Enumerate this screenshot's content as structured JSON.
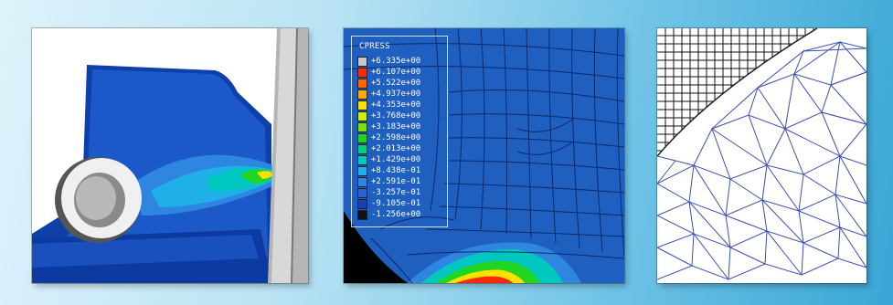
{
  "legend": {
    "title": "CPRESS",
    "entries": [
      {
        "label": "+6.335e+00",
        "color": "#c8c8c8"
      },
      {
        "label": "+6.107e+00",
        "color": "#ff2a00"
      },
      {
        "label": "+5.522e+00",
        "color": "#ff6a00"
      },
      {
        "label": "+4.937e+00",
        "color": "#ffaa00"
      },
      {
        "label": "+4.353e+00",
        "color": "#ffe000"
      },
      {
        "label": "+3.768e+00",
        "color": "#cfef00"
      },
      {
        "label": "+3.183e+00",
        "color": "#7fdf00"
      },
      {
        "label": "+2.598e+00",
        "color": "#22d522"
      },
      {
        "label": "+2.013e+00",
        "color": "#00d07a"
      },
      {
        "label": "+1.429e+00",
        "color": "#00c8c0"
      },
      {
        "label": "+8.438e-01",
        "color": "#20b0e8"
      },
      {
        "label": "+2.591e-01",
        "color": "#2e86e0"
      },
      {
        "label": "-3.257e-01",
        "color": "#2a63d0"
      },
      {
        "label": "-9.105e-01",
        "color": "#1d3fb0"
      },
      {
        "label": "-1.256e+00",
        "color": "#111111"
      }
    ]
  },
  "colors": {
    "background_light": "#dff2fb",
    "background_dark": "#3aa6d6",
    "fe_blue": "#1f5fc0",
    "mesh_line": "#2a3a9a"
  }
}
